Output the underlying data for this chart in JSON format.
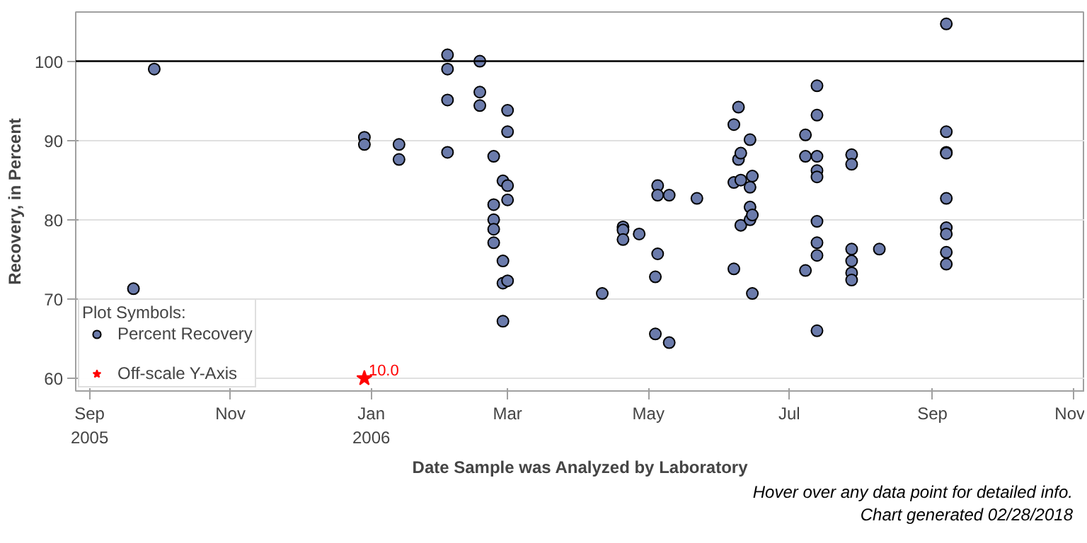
{
  "chart_data": {
    "type": "scatter",
    "xlabel": "Date Sample was Analyzed by Laboratory",
    "ylabel": "Recovery, in Percent",
    "legend_title": "Plot Symbols:",
    "legend": "bottom left",
    "grid": "y",
    "xlim": [
      "2005-08-26",
      "2006-11-06"
    ],
    "ylim": [
      58.4,
      106.2
    ],
    "xticks": [
      {
        "value": "2005-09-01",
        "label": "Sep\n2005"
      },
      {
        "value": "2005-11-01",
        "label": "Nov"
      },
      {
        "value": "2006-01-01",
        "label": "Jan\n2006"
      },
      {
        "value": "2006-03-01",
        "label": "Mar"
      },
      {
        "value": "2006-05-01",
        "label": "May"
      },
      {
        "value": "2006-07-01",
        "label": "Jul"
      },
      {
        "value": "2006-09-01",
        "label": "Sep"
      },
      {
        "value": "2006-11-01",
        "label": "Nov"
      }
    ],
    "yticks": [
      60,
      70,
      80,
      90,
      100
    ],
    "ref_lines": [
      {
        "axis": "y",
        "value": 100,
        "color": "#000000"
      }
    ],
    "series": [
      {
        "name": "Percent Recovery",
        "color": "#6b7bab",
        "marker": "circle",
        "x": [
          "2005-09-20",
          "2005-09-29",
          "2005-12-29",
          "2005-12-29",
          "2006-01-13",
          "2006-01-13",
          "2006-02-03",
          "2006-02-03",
          "2006-02-03",
          "2006-02-03",
          "2006-02-17",
          "2006-02-17",
          "2006-02-17",
          "2006-02-23",
          "2006-02-23",
          "2006-02-23",
          "2006-02-23",
          "2006-02-23",
          "2006-02-27",
          "2006-02-27",
          "2006-02-27",
          "2006-02-27",
          "2006-03-01",
          "2006-03-01",
          "2006-03-01",
          "2006-03-01",
          "2006-03-01",
          "2006-04-11",
          "2006-04-20",
          "2006-04-20",
          "2006-04-20",
          "2006-04-27",
          "2006-05-04",
          "2006-05-04",
          "2006-05-05",
          "2006-05-05",
          "2006-05-05",
          "2006-05-10",
          "2006-05-10",
          "2006-05-22",
          "2006-06-07",
          "2006-06-07",
          "2006-06-07",
          "2006-06-09",
          "2006-06-09",
          "2006-06-10",
          "2006-06-10",
          "2006-06-10",
          "2006-06-14",
          "2006-06-14",
          "2006-06-14",
          "2006-06-14",
          "2006-06-15",
          "2006-06-15",
          "2006-06-15",
          "2006-07-08",
          "2006-07-08",
          "2006-07-08",
          "2006-07-13",
          "2006-07-13",
          "2006-07-13",
          "2006-07-13",
          "2006-07-13",
          "2006-07-13",
          "2006-07-13",
          "2006-07-13",
          "2006-07-13",
          "2006-07-28",
          "2006-07-28",
          "2006-07-28",
          "2006-07-28",
          "2006-07-28",
          "2006-07-28",
          "2006-08-09",
          "2006-09-07",
          "2006-09-07",
          "2006-09-07",
          "2006-09-07",
          "2006-09-07",
          "2006-09-07",
          "2006-09-07",
          "2006-09-07",
          "2006-09-07"
        ],
        "values": [
          71.3,
          99.0,
          90.4,
          89.5,
          89.5,
          87.6,
          100.8,
          99.0,
          95.1,
          88.5,
          100.0,
          96.1,
          94.4,
          88.0,
          81.9,
          80.0,
          78.8,
          77.1,
          84.9,
          74.8,
          72.0,
          67.2,
          93.8,
          91.1,
          84.3,
          82.5,
          72.3,
          70.7,
          79.1,
          78.7,
          77.5,
          78.2,
          72.8,
          65.6,
          84.3,
          83.1,
          75.7,
          83.1,
          64.5,
          82.7,
          92.0,
          73.8,
          84.7,
          94.2,
          87.6,
          88.4,
          79.3,
          85.0,
          90.1,
          84.1,
          81.6,
          80.0,
          85.5,
          80.6,
          70.7,
          90.7,
          88.0,
          73.6,
          96.9,
          93.2,
          88.0,
          86.2,
          85.4,
          79.8,
          77.1,
          75.5,
          66.0,
          88.2,
          87.0,
          76.3,
          74.8,
          73.3,
          72.4,
          76.3,
          104.7,
          91.1,
          88.5,
          88.4,
          82.7,
          79.0,
          78.2,
          75.9,
          74.4
        ]
      },
      {
        "name": "Off-scale Y-Axis",
        "color": "#ff0000",
        "marker": "star",
        "x": [
          "2005-12-29"
        ],
        "values": [
          60
        ]
      }
    ],
    "annotations": [
      {
        "text": "10.0",
        "x": "2005-12-29",
        "y": 60
      },
      "Hover over any data point for detailed info.",
      "Chart generated 02/28/2018"
    ]
  }
}
